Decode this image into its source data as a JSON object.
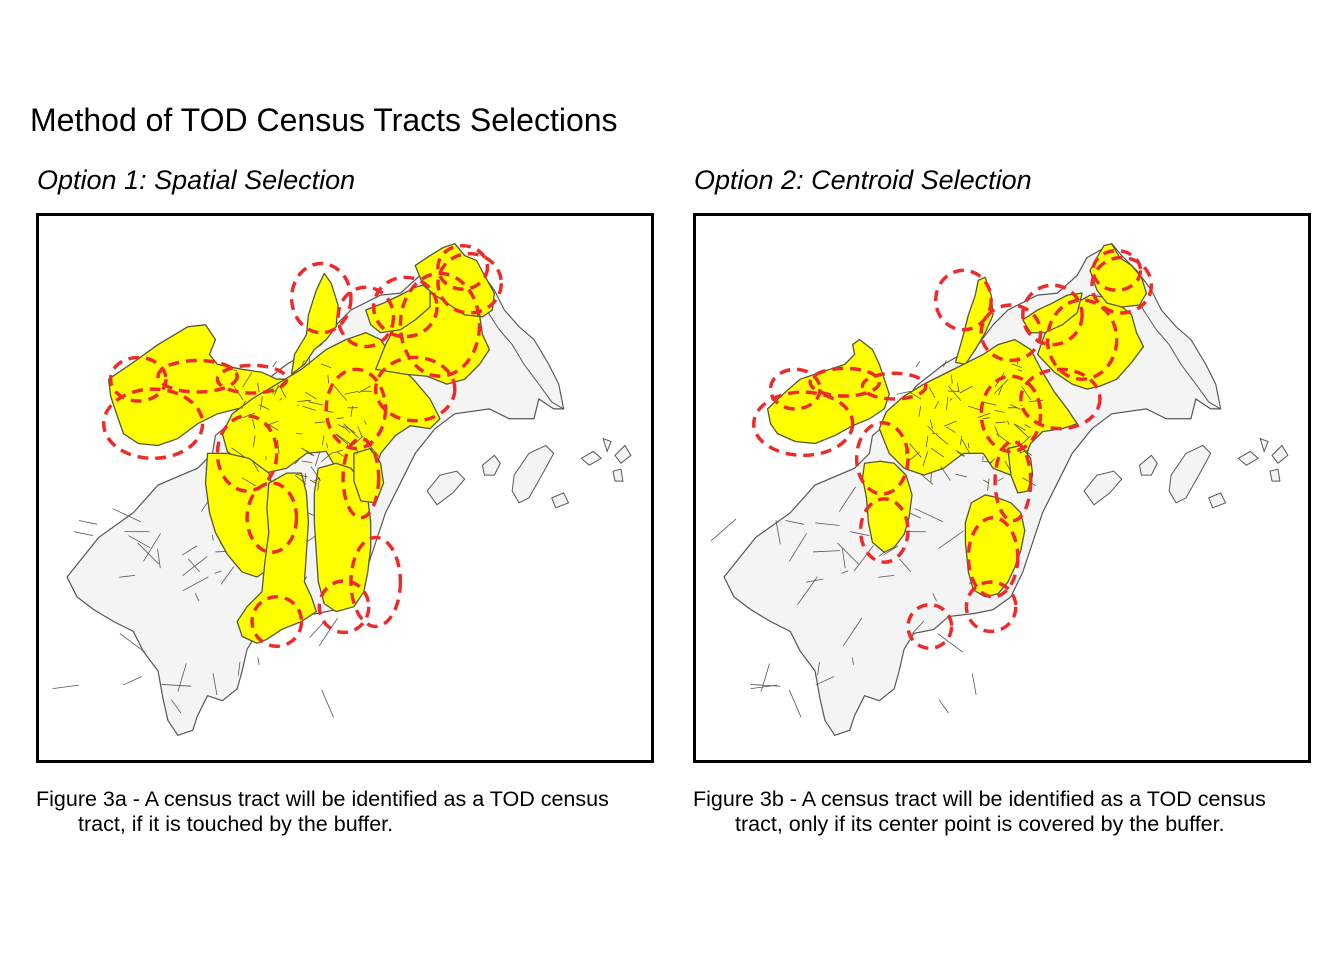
{
  "page": {
    "title": "Method of TOD Census Tracts Selections"
  },
  "panels": [
    {
      "id": "a",
      "title": "Option 1: Spatial Selection",
      "caption_line1": "Figure 3a - A census tract will be identified as a TOD census",
      "caption_line2": "tract, if it is touched by the buffer.",
      "selection": "spatial"
    },
    {
      "id": "b",
      "title": "Option 2: Centroid Selection",
      "caption_line1": "Figure 3b - A census tract will be identified as a TOD census",
      "caption_line2": "tract, only if its center point is covered by the buffer.",
      "selection": "centroid"
    }
  ],
  "legend_colors": {
    "selected_tract_fill": "#ffff00",
    "selected_tract_outline": "#555533",
    "unselected_tract_fill": "#f4f4f4",
    "tract_outline": "#555555",
    "buffer_stroke": "#ee2a2a",
    "frame": "#000000"
  },
  "map_features": [
    "census-tracts",
    "station-buffers",
    "islands"
  ]
}
